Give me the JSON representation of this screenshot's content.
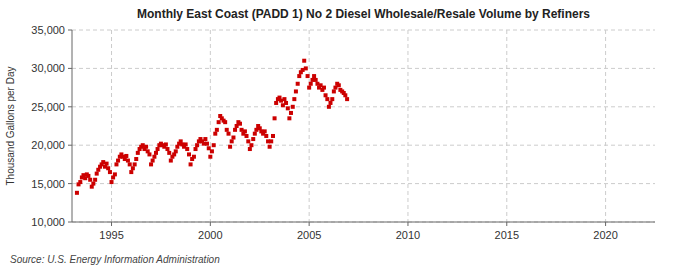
{
  "chart_data": {
    "type": "scatter",
    "title": "Monthly East Coast (PADD 1) No 2 Diesel Wholesale/Resale Volume by Refiners",
    "y_label": "Thousand Gallons per Day",
    "source": "Source: U.S. Energy Information Administration",
    "color": "#cc0000",
    "marker": "square",
    "grid": true,
    "xlim": [
      1993.0,
      2022.5
    ],
    "ylim": [
      10000,
      35000
    ],
    "xticks": [
      1995,
      2000,
      2005,
      2010,
      2015,
      2020
    ],
    "yticks": [
      {
        "value": 10000,
        "label": "10,000"
      },
      {
        "value": 15000,
        "label": "15,000"
      },
      {
        "value": 20000,
        "label": "20,000"
      },
      {
        "value": 25000,
        "label": "25,000"
      },
      {
        "value": 30000,
        "label": "30,000"
      },
      {
        "value": 35000,
        "label": "35,000"
      }
    ],
    "x": [
      1993.25,
      1993.33,
      1993.42,
      1993.5,
      1993.58,
      1993.67,
      1993.75,
      1993.83,
      1993.92,
      1994.0,
      1994.08,
      1994.17,
      1994.25,
      1994.33,
      1994.42,
      1994.5,
      1994.58,
      1994.67,
      1994.75,
      1994.83,
      1994.92,
      1995.0,
      1995.08,
      1995.17,
      1995.25,
      1995.33,
      1995.42,
      1995.5,
      1995.58,
      1995.67,
      1995.75,
      1995.83,
      1995.92,
      1996.0,
      1996.08,
      1996.17,
      1996.25,
      1996.33,
      1996.42,
      1996.5,
      1996.58,
      1996.67,
      1996.75,
      1996.83,
      1996.92,
      1997.0,
      1997.08,
      1997.17,
      1997.25,
      1997.33,
      1997.42,
      1997.5,
      1997.58,
      1997.67,
      1997.75,
      1997.83,
      1997.92,
      1998.0,
      1998.08,
      1998.17,
      1998.25,
      1998.33,
      1998.42,
      1998.5,
      1998.58,
      1998.67,
      1998.75,
      1998.83,
      1998.92,
      1999.0,
      1999.08,
      1999.17,
      1999.25,
      1999.33,
      1999.42,
      1999.5,
      1999.58,
      1999.67,
      1999.75,
      1999.83,
      1999.92,
      2000.0,
      2000.08,
      2000.17,
      2000.25,
      2000.33,
      2000.42,
      2000.5,
      2000.58,
      2000.67,
      2000.75,
      2000.83,
      2000.92,
      2001.0,
      2001.08,
      2001.17,
      2001.25,
      2001.33,
      2001.42,
      2001.5,
      2001.58,
      2001.67,
      2001.75,
      2001.83,
      2001.92,
      2002.0,
      2002.08,
      2002.17,
      2002.25,
      2002.33,
      2002.42,
      2002.5,
      2002.58,
      2002.67,
      2002.75,
      2002.83,
      2002.92,
      2003.0,
      2003.08,
      2003.17,
      2003.25,
      2003.33,
      2003.42,
      2003.5,
      2003.58,
      2003.67,
      2003.75,
      2003.83,
      2003.92,
      2004.0,
      2004.08,
      2004.17,
      2004.25,
      2004.33,
      2004.42,
      2004.5,
      2004.58,
      2004.67,
      2004.75,
      2004.83,
      2004.92,
      2005.0,
      2005.08,
      2005.17,
      2005.25,
      2005.33,
      2005.42,
      2005.5,
      2005.58,
      2005.67,
      2005.75,
      2005.83,
      2005.92,
      2006.0,
      2006.08,
      2006.17,
      2006.25,
      2006.33,
      2006.42,
      2006.5,
      2006.58,
      2006.67,
      2006.75,
      2006.83,
      2006.92
    ],
    "values": [
      13800,
      14900,
      15200,
      15800,
      16100,
      15700,
      16200,
      16000,
      15500,
      14600,
      15000,
      15500,
      16300,
      16800,
      17200,
      17500,
      17800,
      17200,
      17600,
      17000,
      16500,
      15200,
      15800,
      16200,
      17500,
      18000,
      18500,
      18800,
      18500,
      18200,
      18600,
      18000,
      17500,
      16500,
      17000,
      17500,
      18200,
      19000,
      19500,
      19800,
      20000,
      19500,
      19800,
      19200,
      18800,
      17500,
      18000,
      18500,
      19000,
      19500,
      20000,
      20200,
      20000,
      19800,
      20100,
      19500,
      19000,
      18000,
      18500,
      18800,
      19200,
      19800,
      20200,
      20500,
      20100,
      19800,
      20100,
      19500,
      18800,
      17500,
      18200,
      18500,
      19500,
      20000,
      20500,
      20800,
      20500,
      20200,
      20800,
      20200,
      19600,
      18500,
      19200,
      20000,
      21500,
      22000,
      23000,
      23800,
      23500,
      23200,
      23000,
      22000,
      21500,
      19800,
      20500,
      21000,
      22000,
      22500,
      23000,
      22800,
      22000,
      21500,
      21800,
      21200,
      20500,
      19500,
      20000,
      20800,
      21500,
      22000,
      22500,
      22200,
      21800,
      21500,
      21800,
      21200,
      20500,
      19800,
      20500,
      21200,
      23500,
      25500,
      26000,
      26200,
      25800,
      25200,
      26000,
      25500,
      24800,
      23500,
      24200,
      25000,
      26000,
      27000,
      28000,
      29000,
      29500,
      29800,
      31000,
      30000,
      29000,
      27500,
      28000,
      28500,
      29000,
      28500,
      28000,
      27500,
      27800,
      27200,
      27500,
      26500,
      26000,
      25000,
      25500,
      26000,
      27000,
      27500,
      28000,
      27800,
      27200,
      27000,
      26800,
      26500,
      26000
    ]
  }
}
